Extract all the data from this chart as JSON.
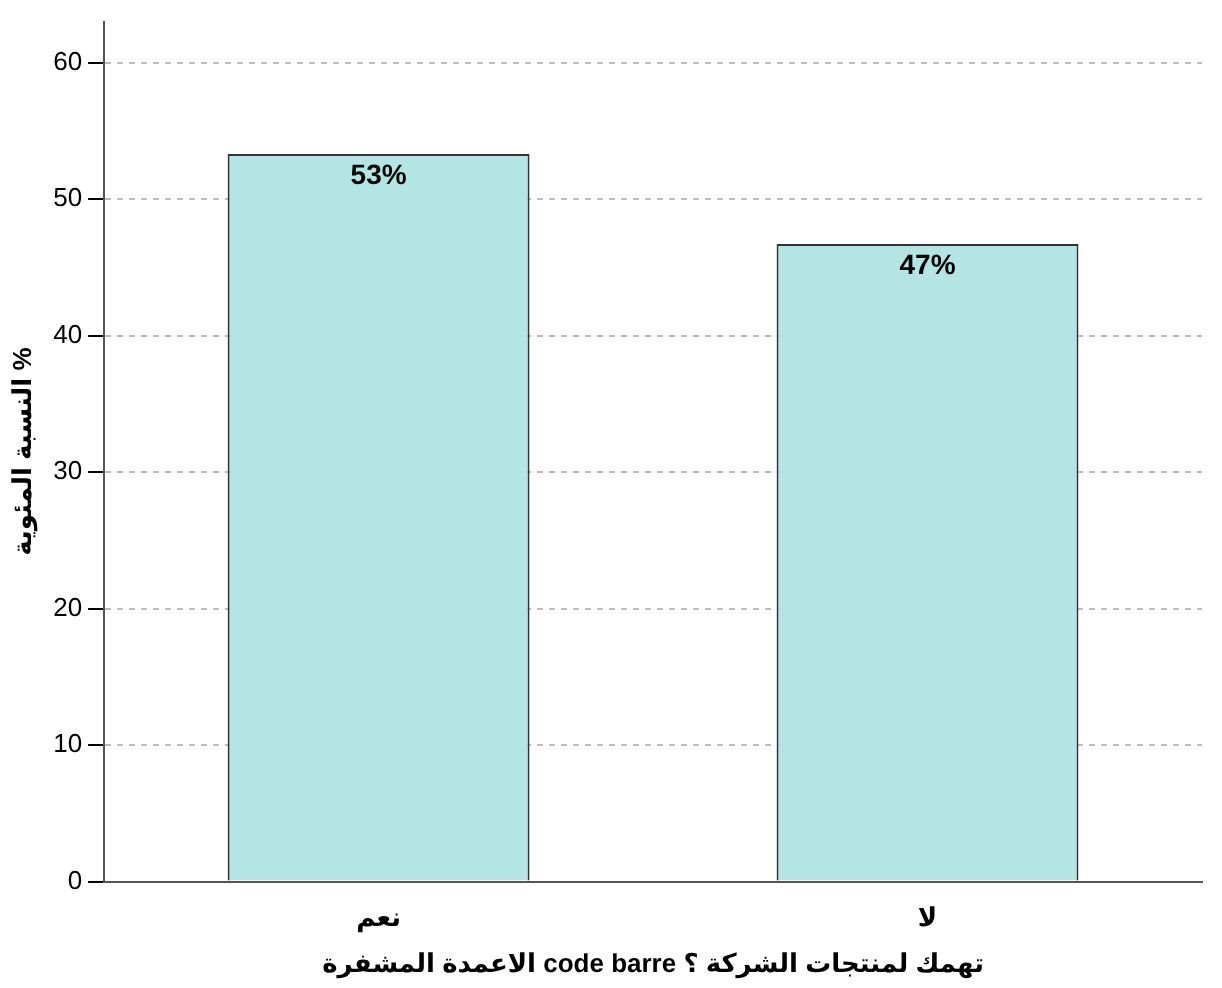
{
  "chart_data": {
    "type": "bar",
    "xlabel": "الاعمدة المشفرة code barre تهمك لمنتجات الشركة ؟",
    "ylabel": "النسبة المئوية %",
    "categories": [
      "نعم",
      "لا"
    ],
    "values": [
      53.3,
      46.7
    ],
    "value_labels": [
      "53%",
      "47%"
    ],
    "color": "#b3e5e5",
    "ylim": [
      0,
      63
    ],
    "yticks": [
      0,
      10,
      20,
      30,
      40,
      50,
      60
    ],
    "grid": "y",
    "legend": false
  }
}
